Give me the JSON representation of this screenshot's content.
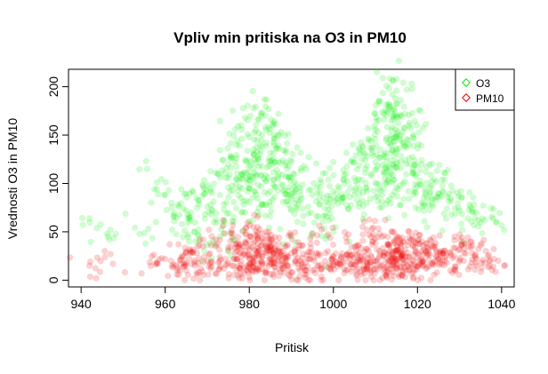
{
  "chart_data": {
    "type": "scatter",
    "title": "Vpliv min pritiska na O3 in PM10",
    "xlabel": "Pritisk",
    "ylabel": "Vrednosti O3 in PM10",
    "xlim": [
      940,
      1040
    ],
    "ylim": [
      0,
      210
    ],
    "xticks": [
      940,
      960,
      980,
      1000,
      1020,
      1040
    ],
    "yticks": [
      0,
      50,
      100,
      150,
      200
    ],
    "grid": false,
    "legend_position": "top-right",
    "series": [
      {
        "name": "O3",
        "color": "#00ee00",
        "points": [
          [
            942,
            64
          ],
          [
            947,
            52
          ],
          [
            956,
            53
          ],
          [
            958,
            94
          ],
          [
            960,
            88
          ],
          [
            962,
            67
          ],
          [
            963,
            78
          ],
          [
            964,
            58
          ],
          [
            965,
            72
          ],
          [
            966,
            64
          ],
          [
            967,
            50
          ],
          [
            968,
            82
          ],
          [
            969,
            97
          ],
          [
            970,
            76
          ],
          [
            971,
            68
          ],
          [
            972,
            111
          ],
          [
            973,
            88
          ],
          [
            974,
            73
          ],
          [
            975,
            96
          ],
          [
            975,
            120
          ],
          [
            976,
            61
          ],
          [
            977,
            140
          ],
          [
            977,
            104
          ],
          [
            978,
            85
          ],
          [
            978,
            160
          ],
          [
            979,
            124
          ],
          [
            979,
            70
          ],
          [
            980,
            148
          ],
          [
            980,
            112
          ],
          [
            980,
            95
          ],
          [
            981,
            178
          ],
          [
            981,
            135
          ],
          [
            981,
            101
          ],
          [
            982,
            166
          ],
          [
            982,
            127
          ],
          [
            982,
            84
          ],
          [
            983,
            150
          ],
          [
            983,
            118
          ],
          [
            983,
            170
          ],
          [
            984,
            142
          ],
          [
            984,
            103
          ],
          [
            984,
            78
          ],
          [
            985,
            132
          ],
          [
            985,
            156
          ],
          [
            985,
            92
          ],
          [
            986,
            122
          ],
          [
            986,
            146
          ],
          [
            986,
            86
          ],
          [
            987,
            110
          ],
          [
            987,
            136
          ],
          [
            988,
            98
          ],
          [
            988,
            124
          ],
          [
            989,
            115
          ],
          [
            989,
            88
          ],
          [
            990,
            106
          ],
          [
            990,
            72
          ],
          [
            991,
            94
          ],
          [
            992,
            82
          ],
          [
            993,
            118
          ],
          [
            994,
            76
          ],
          [
            995,
            88
          ],
          [
            996,
            66
          ],
          [
            997,
            101
          ],
          [
            998,
            74
          ],
          [
            999,
            62
          ],
          [
            1000,
            92
          ],
          [
            1001,
            79
          ],
          [
            1002,
            84
          ],
          [
            1003,
            110
          ],
          [
            1004,
            96
          ],
          [
            1005,
            122
          ],
          [
            1006,
            104
          ],
          [
            1006,
            76
          ],
          [
            1007,
            132
          ],
          [
            1008,
            118
          ],
          [
            1008,
            92
          ],
          [
            1009,
            144
          ],
          [
            1009,
            108
          ],
          [
            1010,
            156
          ],
          [
            1010,
            122
          ],
          [
            1010,
            86
          ],
          [
            1011,
            185
          ],
          [
            1011,
            135
          ],
          [
            1011,
            99
          ],
          [
            1012,
            166
          ],
          [
            1012,
            128
          ],
          [
            1012,
            112
          ],
          [
            1013,
            176
          ],
          [
            1013,
            142
          ],
          [
            1013,
            104
          ],
          [
            1014,
            192
          ],
          [
            1014,
            158
          ],
          [
            1014,
            120
          ],
          [
            1014,
            88
          ],
          [
            1015,
            208
          ],
          [
            1015,
            168
          ],
          [
            1015,
            134
          ],
          [
            1015,
            96
          ],
          [
            1016,
            186
          ],
          [
            1016,
            150
          ],
          [
            1016,
            116
          ],
          [
            1017,
            172
          ],
          [
            1017,
            138
          ],
          [
            1017,
            102
          ],
          [
            1018,
            160
          ],
          [
            1018,
            126
          ],
          [
            1018,
            84
          ],
          [
            1019,
            148
          ],
          [
            1019,
            112
          ],
          [
            1020,
            136
          ],
          [
            1020,
            98
          ],
          [
            1021,
            124
          ],
          [
            1021,
            80
          ],
          [
            1022,
            112
          ],
          [
            1023,
            96
          ],
          [
            1024,
            104
          ],
          [
            1025,
            86
          ],
          [
            1026,
            92
          ],
          [
            1027,
            74
          ],
          [
            1028,
            82
          ],
          [
            1029,
            68
          ],
          [
            1030,
            72
          ],
          [
            1032,
            64
          ],
          [
            1034,
            70
          ],
          [
            1036,
            62
          ],
          [
            1038,
            64
          ],
          [
            968,
            40
          ],
          [
            972,
            35
          ],
          [
            990,
            45
          ],
          [
            1000,
            50
          ]
        ]
      },
      {
        "name": "PM10",
        "color": "#ee0000",
        "points": [
          [
            942,
            15
          ],
          [
            947,
            27
          ],
          [
            958,
            18
          ],
          [
            960,
            22
          ],
          [
            962,
            16
          ],
          [
            963,
            12
          ],
          [
            964,
            25
          ],
          [
            965,
            10
          ],
          [
            966,
            30
          ],
          [
            967,
            18
          ],
          [
            968,
            8
          ],
          [
            969,
            35
          ],
          [
            970,
            20
          ],
          [
            971,
            14
          ],
          [
            972,
            42
          ],
          [
            973,
            24
          ],
          [
            974,
            12
          ],
          [
            975,
            30
          ],
          [
            975,
            18
          ],
          [
            976,
            48
          ],
          [
            977,
            22
          ],
          [
            977,
            10
          ],
          [
            978,
            34
          ],
          [
            978,
            16
          ],
          [
            979,
            40
          ],
          [
            979,
            26
          ],
          [
            980,
            14
          ],
          [
            980,
            32
          ],
          [
            980,
            22
          ],
          [
            981,
            55
          ],
          [
            981,
            38
          ],
          [
            981,
            18
          ],
          [
            982,
            44
          ],
          [
            982,
            28
          ],
          [
            982,
            12
          ],
          [
            983,
            36
          ],
          [
            983,
            24
          ],
          [
            983,
            16
          ],
          [
            984,
            50
          ],
          [
            984,
            30
          ],
          [
            984,
            10
          ],
          [
            985,
            42
          ],
          [
            985,
            22
          ],
          [
            985,
            34
          ],
          [
            986,
            26
          ],
          [
            986,
            14
          ],
          [
            987,
            38
          ],
          [
            987,
            20
          ],
          [
            988,
            30
          ],
          [
            988,
            12
          ],
          [
            989,
            24
          ],
          [
            989,
            16
          ],
          [
            990,
            28
          ],
          [
            990,
            8
          ],
          [
            991,
            20
          ],
          [
            992,
            36
          ],
          [
            993,
            14
          ],
          [
            994,
            22
          ],
          [
            995,
            10
          ],
          [
            996,
            28
          ],
          [
            997,
            16
          ],
          [
            998,
            20
          ],
          [
            999,
            12
          ],
          [
            1000,
            24
          ],
          [
            1001,
            14
          ],
          [
            1002,
            18
          ],
          [
            1003,
            10
          ],
          [
            1004,
            22
          ],
          [
            1005,
            16
          ],
          [
            1006,
            28
          ],
          [
            1006,
            12
          ],
          [
            1007,
            20
          ],
          [
            1008,
            32
          ],
          [
            1008,
            14
          ],
          [
            1009,
            24
          ],
          [
            1009,
            10
          ],
          [
            1010,
            38
          ],
          [
            1010,
            20
          ],
          [
            1010,
            12
          ],
          [
            1011,
            30
          ],
          [
            1011,
            16
          ],
          [
            1012,
            46
          ],
          [
            1012,
            26
          ],
          [
            1012,
            12
          ],
          [
            1013,
            36
          ],
          [
            1013,
            20
          ],
          [
            1013,
            8
          ],
          [
            1014,
            50
          ],
          [
            1014,
            30
          ],
          [
            1014,
            16
          ],
          [
            1015,
            42
          ],
          [
            1015,
            22
          ],
          [
            1015,
            12
          ],
          [
            1016,
            38
          ],
          [
            1016,
            26
          ],
          [
            1016,
            14
          ],
          [
            1017,
            32
          ],
          [
            1017,
            18
          ],
          [
            1018,
            44
          ],
          [
            1018,
            24
          ],
          [
            1018,
            10
          ],
          [
            1019,
            36
          ],
          [
            1019,
            20
          ],
          [
            1020,
            28
          ],
          [
            1020,
            14
          ],
          [
            1021,
            40
          ],
          [
            1021,
            22
          ],
          [
            1022,
            30
          ],
          [
            1022,
            12
          ],
          [
            1023,
            26
          ],
          [
            1024,
            36
          ],
          [
            1024,
            16
          ],
          [
            1025,
            22
          ],
          [
            1026,
            30
          ],
          [
            1027,
            18
          ],
          [
            1028,
            26
          ],
          [
            1029,
            14
          ],
          [
            1030,
            32
          ],
          [
            1031,
            20
          ],
          [
            1032,
            44
          ],
          [
            1033,
            28
          ],
          [
            1034,
            22
          ],
          [
            1035,
            36
          ],
          [
            1036,
            18
          ],
          [
            1038,
            14
          ],
          [
            1037,
            26
          ],
          [
            995,
            48
          ],
          [
            1003,
            44
          ],
          [
            1008,
            52
          ],
          [
            992,
            4
          ]
        ]
      }
    ]
  }
}
